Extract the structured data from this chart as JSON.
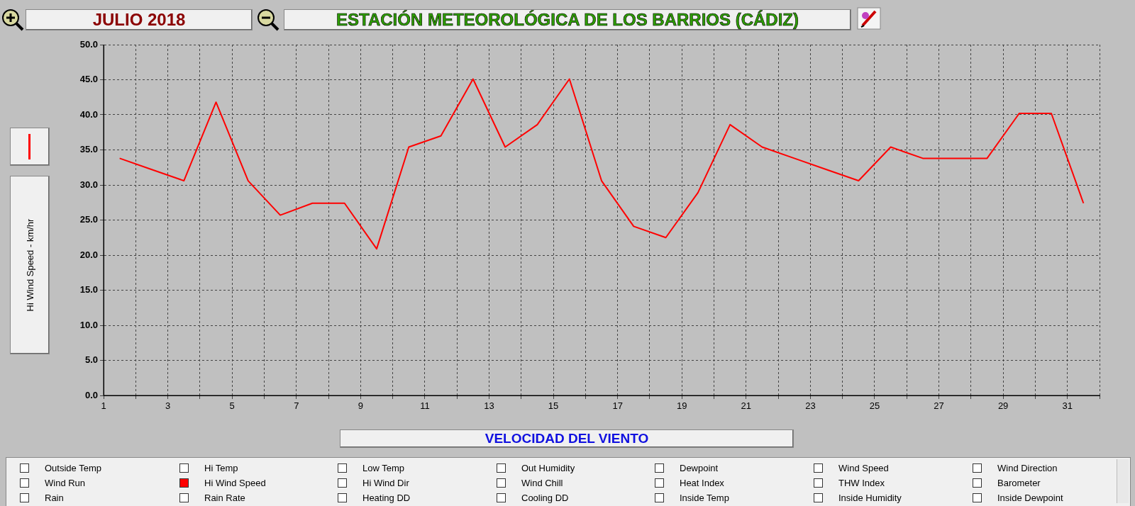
{
  "chart_data": {
    "type": "line",
    "title": "ESTACIÓN METEOROLÓGICA DE LOS BARRIOS (CÁDIZ)",
    "subtitle": "JULIO 2018",
    "xlabel": "VELOCIDAD DEL VIENTO",
    "ylabel": "Hi Wind Speed - km/hr",
    "x": [
      1.5,
      2.5,
      3.5,
      4.5,
      5.5,
      6.5,
      7.5,
      8.5,
      9.5,
      10.5,
      11.5,
      12.5,
      13.5,
      14.5,
      15.5,
      16.5,
      17.5,
      18.5,
      19.5,
      20.5,
      21.5,
      22.5,
      23.5,
      24.5,
      25.5,
      26.5,
      27.5,
      28.5,
      29.5,
      30.5,
      31.5
    ],
    "series": [
      {
        "name": "Hi Wind Speed",
        "color": "#ff0000",
        "values": [
          33.8,
          32.2,
          30.6,
          41.8,
          30.6,
          25.7,
          27.4,
          27.4,
          20.9,
          35.4,
          37.0,
          45.1,
          35.4,
          38.6,
          45.1,
          30.6,
          24.1,
          22.5,
          28.9,
          38.6,
          35.4,
          33.8,
          32.2,
          30.6,
          35.4,
          33.8,
          33.8,
          33.8,
          40.2,
          40.2,
          27.4
        ]
      }
    ],
    "xlim": [
      1,
      32
    ],
    "xticks": [
      1,
      {
        "value": 2,
        "label": null
      },
      3,
      {
        "value": 4,
        "label": null
      },
      5,
      {
        "value": 6,
        "label": null
      },
      7,
      {
        "value": 8,
        "label": null
      },
      9,
      {
        "value": 10,
        "label": null
      },
      11,
      {
        "value": 12,
        "label": null
      },
      13,
      {
        "value": 14,
        "label": null
      },
      15,
      {
        "value": 16,
        "label": null
      },
      17,
      {
        "value": 18,
        "label": null
      },
      19,
      {
        "value": 20,
        "label": null
      },
      21,
      {
        "value": 22,
        "label": null
      },
      23,
      {
        "value": 24,
        "label": null
      },
      25,
      {
        "value": 26,
        "label": null
      },
      27,
      {
        "value": 28,
        "label": null
      },
      29,
      {
        "value": 30,
        "label": null
      },
      31,
      {
        "value": 32,
        "label": null
      }
    ],
    "ylim": [
      0,
      50
    ],
    "yticks": [
      {
        "value": 0,
        "label": "0.0"
      },
      {
        "value": 5,
        "label": "5.0"
      },
      {
        "value": 10,
        "label": "10.0"
      },
      {
        "value": 15,
        "label": "15.0"
      },
      {
        "value": 20,
        "label": "20.0"
      },
      {
        "value": 25,
        "label": "25.0"
      },
      {
        "value": 30,
        "label": "30.0"
      },
      {
        "value": 35,
        "label": "35.0"
      },
      {
        "value": 40,
        "label": "40.0"
      },
      {
        "value": 45,
        "label": "45.0"
      },
      {
        "value": 50,
        "label": "50.0"
      }
    ],
    "grid": true,
    "legend": "bottom",
    "marker": "none",
    "line_style": "solid",
    "annotations": [
      "Outside Temp",
      "Hi Temp",
      "Low Temp",
      "Out Humidity",
      "Dewpoint",
      "Wind Speed",
      "Wind Direction",
      "Wind Run",
      "Hi Wind Dir",
      "Wind Chill",
      "Heat Index",
      "THW Index",
      "Barometer",
      "Rain",
      "Rain Rate",
      "Heating DD",
      "Cooling DD",
      "Inside Temp",
      "Inside Humidity",
      "Inside Dewpoint"
    ]
  }
}
